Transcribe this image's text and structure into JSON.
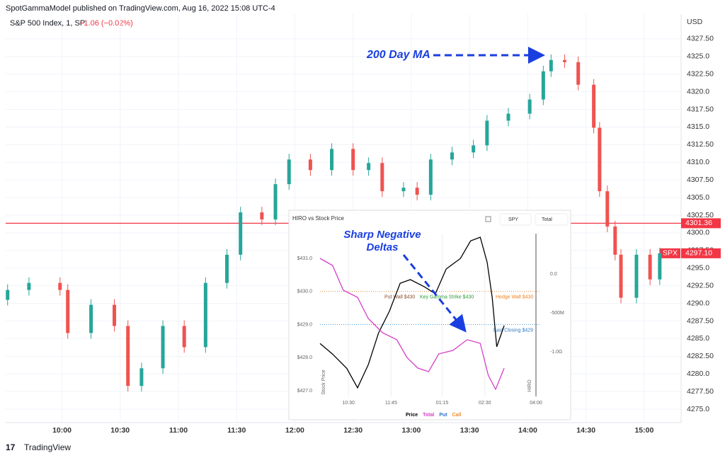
{
  "header": {
    "publisher": "SpotGammaModel published on TradingView.com, Aug 16, 2022 15:08 UTC-4",
    "symbol": "S&P 500 Index, 1, SP",
    "change": "−1.06 (−0.02%)",
    "currency": "USD",
    "footer": "TradingView"
  },
  "chart_data": [
    {
      "type": "candlestick",
      "annotation": "200 Day MA",
      "up_color": "#26a69a",
      "down_color": "#ef5350",
      "x": [
        572,
        583,
        599,
        603,
        615,
        627,
        634,
        641,
        652,
        663,
        674,
        685,
        692,
        703,
        710,
        717,
        728,
        739,
        750,
        758,
        765,
        776,
        783,
        790,
        801,
        812,
        819,
        830,
        841,
        848,
        852,
        859,
        866,
        874,
        877,
        881,
        885,
        888,
        896,
        903,
        908
      ],
      "open": [
        4290.5,
        4291.9,
        4292.9,
        4291.9,
        4285.8,
        4289.8,
        4286.8,
        4278.3,
        4280.8,
        4286.8,
        4283.8,
        4292.9,
        4296.9,
        4302.9,
        4301.9,
        4306.9,
        4310.4,
        4308.9,
        4311.9,
        4308.9,
        4309.9,
        4305.9,
        4306.4,
        4305.4,
        4310.4,
        4311.4,
        4312.4,
        4315.9,
        4316.9,
        4318.9,
        4322.9,
        4324.5,
        4324.2,
        4321.0,
        4314.9,
        4305.9,
        4300.9,
        4296.9,
        4290.8,
        4296.9,
        4293.4
      ],
      "high": [
        4292.7,
        4293.7,
        4293.7,
        4292.7,
        4290.6,
        4290.6,
        4287.6,
        4281.6,
        4287.6,
        4287.6,
        4293.7,
        4297.7,
        4303.7,
        4303.7,
        4307.7,
        4311.2,
        4311.2,
        4312.7,
        4312.7,
        4310.7,
        4310.7,
        4307.2,
        4307.2,
        4311.2,
        4312.2,
        4313.2,
        4316.7,
        4317.7,
        4319.7,
        4323.7,
        4325.3,
        4325.3,
        4325.0,
        4321.8,
        4315.7,
        4306.7,
        4301.7,
        4297.7,
        4297.7,
        4297.7,
        4297.9
      ],
      "low": [
        4289.7,
        4291.1,
        4291.1,
        4285.0,
        4285.0,
        4286.0,
        4277.5,
        4277.5,
        4280.0,
        4283.0,
        4283.0,
        4292.1,
        4296.1,
        4301.1,
        4301.1,
        4306.1,
        4308.1,
        4308.1,
        4308.1,
        4308.1,
        4305.1,
        4305.1,
        4304.6,
        4304.6,
        4309.6,
        4310.6,
        4311.6,
        4315.1,
        4316.1,
        4318.1,
        4322.1,
        4323.4,
        4320.2,
        4314.1,
        4305.1,
        4300.1,
        4296.1,
        4290.0,
        4290.0,
        4292.6,
        4292.6
      ],
      "close": [
        4291.9,
        4292.9,
        4291.9,
        4285.8,
        4289.8,
        4286.8,
        4278.3,
        4280.8,
        4286.8,
        4283.8,
        4292.9,
        4296.9,
        4302.9,
        4301.9,
        4306.9,
        4310.4,
        4308.9,
        4311.9,
        4308.9,
        4309.9,
        4305.9,
        4306.4,
        4305.4,
        4310.4,
        4311.4,
        4312.4,
        4315.9,
        4316.9,
        4318.9,
        4322.9,
        4324.5,
        4324.2,
        4321.0,
        4314.9,
        4305.9,
        4300.9,
        4296.9,
        4290.8,
        4296.9,
        4293.4,
        4297.1
      ],
      "xlim": [
        571,
        919
      ],
      "ylim": [
        4273.1,
        4331.0
      ],
      "xticks": [
        {
          "value": 600,
          "label": "10:00"
        },
        {
          "value": 630,
          "label": "10:30"
        },
        {
          "value": 660,
          "label": "11:00"
        },
        {
          "value": 690,
          "label": "11:30"
        },
        {
          "value": 720,
          "label": "12:00"
        },
        {
          "value": 750,
          "label": "12:30"
        },
        {
          "value": 780,
          "label": "13:00"
        },
        {
          "value": 810,
          "label": "13:30"
        },
        {
          "value": 840,
          "label": "14:00"
        },
        {
          "value": 870,
          "label": "14:30"
        },
        {
          "value": 900,
          "label": "15:00"
        }
      ],
      "yticks": [
        {
          "value": 4275,
          "label": "4275.0"
        },
        {
          "value": 4277.5,
          "label": "4277.50"
        },
        {
          "value": 4280,
          "label": "4280.0"
        },
        {
          "value": 4282.5,
          "label": "4282.50"
        },
        {
          "value": 4285,
          "label": "4285.0"
        },
        {
          "value": 4287.5,
          "label": "4287.50"
        },
        {
          "value": 4290,
          "label": "4290.0"
        },
        {
          "value": 4292.5,
          "label": "4292.50"
        },
        {
          "value": 4295,
          "label": "4295.0"
        },
        {
          "value": 4297.5,
          "label": "4297.50"
        },
        {
          "value": 4300,
          "label": "4300.0"
        },
        {
          "value": 4302.5,
          "label": "4302.50"
        },
        {
          "value": 4305,
          "label": "4305.0"
        },
        {
          "value": 4307.5,
          "label": "4307.50"
        },
        {
          "value": 4310,
          "label": "4310.0"
        },
        {
          "value": 4312.5,
          "label": "4312.50"
        },
        {
          "value": 4315,
          "label": "4315.0"
        },
        {
          "value": 4317.5,
          "label": "4317.50"
        },
        {
          "value": 4320,
          "label": "4320.0"
        },
        {
          "value": 4322.5,
          "label": "4322.50"
        },
        {
          "value": 4325,
          "label": "4325.0"
        },
        {
          "value": 4327.5,
          "label": "4327.50"
        }
      ],
      "grid": true,
      "reference_line": {
        "value": 4301.36,
        "label": "4301.36",
        "color": "#f23645"
      },
      "last_price": {
        "name": "SPX",
        "value": 4297.1,
        "label": "4297.10",
        "color": "#f23645"
      }
    },
    {
      "type": "line",
      "title": "HIRO vs Stock Price",
      "annotation": [
        "Sharp Negative",
        "Deltas"
      ],
      "controls": [
        "SPY",
        "Total"
      ],
      "ylabel": "Stock Price",
      "y2label": "HIRO",
      "series": [
        {
          "name": "Price",
          "color": "#000000",
          "x": [
            580,
            602,
            627,
            646,
            665,
            683,
            702,
            721,
            739,
            764,
            783,
            802,
            827,
            845,
            862,
            874,
            883,
            891,
            904
          ],
          "values": [
            428.43,
            428.11,
            427.68,
            427.09,
            427.79,
            428.75,
            429.4,
            430.25,
            430.36,
            430.14,
            429.93,
            430.68,
            431.0,
            431.53,
            431.64,
            430.89,
            429.82,
            428.33,
            428.97
          ]
        },
        {
          "name": "Total",
          "color": "#d63fc8",
          "axis": "y2",
          "x": [
            580,
            602,
            621,
            646,
            665,
            690,
            715,
            733,
            752,
            771,
            789,
            814,
            839,
            862,
            876,
            889,
            904
          ],
          "values": [
            200000000,
            109000000,
            -209000000,
            -300000000,
            -573000000,
            -755000000,
            -845000000,
            -1073000000,
            -1209000000,
            -1255000000,
            -1027000000,
            -982000000,
            -845000000,
            -891000000,
            -1300000000,
            -1482000000,
            -1209000000
          ]
        },
        {
          "name": "Put",
          "color": "#2f6fd6",
          "axis": "y2",
          "x": [],
          "values": []
        },
        {
          "name": "Call",
          "color": "#f28c28",
          "axis": "y2",
          "x": [],
          "values": []
        }
      ],
      "levels": [
        {
          "value": 430,
          "color": "#e08a3c",
          "labels": [
            {
              "text": "Put Wall $430",
              "color": "#8b4a2b"
            },
            {
              "text": "Key Gamma Strike $430",
              "color": "#2e9a3a"
            },
            {
              "text": "Hedge Wall $430",
              "color": "#f0801e"
            }
          ]
        },
        {
          "value": 429,
          "color": "#4a9ad6",
          "labels": [
            {
              "text": "Last Closing $429",
              "color": "#2f7bc0"
            }
          ]
        }
      ],
      "xlim": [
        570,
        960
      ],
      "ylim": [
        426.83,
        431.75
      ],
      "y2lim": [
        -1573000000,
        518000000
      ],
      "xticks": [
        {
          "value": 630,
          "label": "10:30"
        },
        {
          "value": 705,
          "label": "11:45"
        },
        {
          "value": 795,
          "label": "01:15"
        },
        {
          "value": 870,
          "label": "02:30"
        },
        {
          "value": 960,
          "label": "04:00"
        }
      ],
      "yticks": [
        {
          "value": 427,
          "label": "$427.0"
        },
        {
          "value": 428,
          "label": "$428.0"
        },
        {
          "value": 429,
          "label": "$429.0"
        },
        {
          "value": 430,
          "label": "$430.0"
        },
        {
          "value": 431,
          "label": "$431.0"
        }
      ],
      "y2ticks": [
        {
          "value": 0,
          "label": "0.0"
        },
        {
          "value": -500000000,
          "label": "-500M"
        },
        {
          "value": -1000000000,
          "label": "-1.0G"
        }
      ]
    }
  ]
}
